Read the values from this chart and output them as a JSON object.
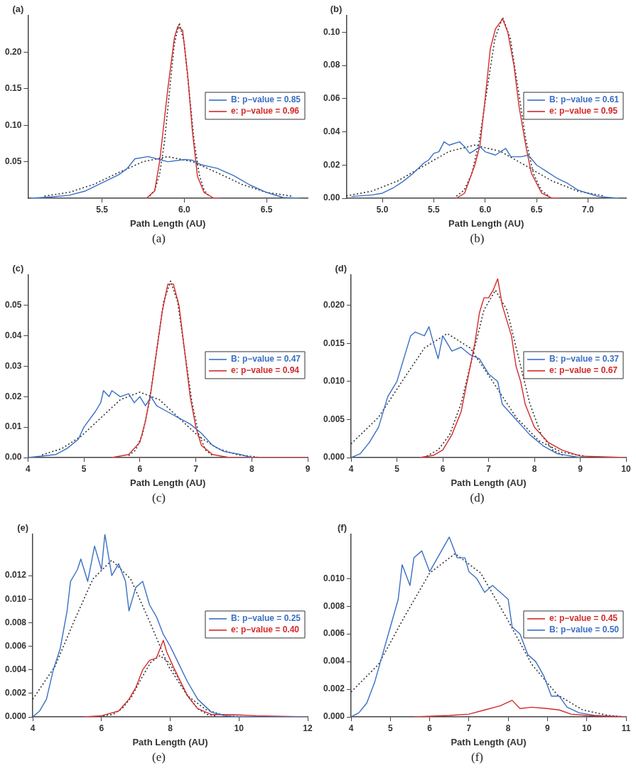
{
  "chart_data": [
    {
      "type": "line",
      "title": "(a)",
      "xlabel": "Path Length (AU)",
      "annotations": [
        "(a)"
      ],
      "xlim": [
        5.05,
        6.75
      ],
      "xticks": [
        5.5,
        {
          "value": 6,
          "label": "6.0"
        },
        6.5
      ],
      "ylim": [
        0,
        0.25
      ],
      "yticks": [
        0.05,
        {
          "value": 0.1,
          "label": "0.10"
        },
        0.15,
        {
          "value": 0.2,
          "label": "0.20"
        }
      ],
      "legend": "right",
      "marker": "none",
      "series": [
        {
          "name": "B: p−value = 0.85",
          "color": "#3a6fc4",
          "x": [
            5.07,
            5.2,
            5.3,
            5.4,
            5.5,
            5.6,
            5.65,
            5.7,
            5.78,
            5.85,
            5.9,
            6.0,
            6.05,
            6.1,
            6.2,
            6.3,
            6.4,
            6.5,
            6.6,
            6.7
          ],
          "values": [
            0,
            0.002,
            0.004,
            0.01,
            0.021,
            0.032,
            0.04,
            0.054,
            0.057,
            0.053,
            0.05,
            0.053,
            0.052,
            0.046,
            0.041,
            0.031,
            0.018,
            0.008,
            0.001,
            0
          ]
        },
        {
          "name": "e: p−value = 0.96",
          "color": "#d42a2a",
          "x": [
            5.77,
            5.82,
            5.85,
            5.9,
            5.94,
            5.96,
            5.99,
            6.02,
            6.05,
            6.08,
            6.12,
            6.18,
            6.22
          ],
          "values": [
            0,
            0.01,
            0.05,
            0.15,
            0.22,
            0.235,
            0.23,
            0.17,
            0.09,
            0.03,
            0.008,
            0,
            0
          ]
        },
        {
          "color": "#333333",
          "line_style": "dotted",
          "x": [
            5.15,
            5.3,
            5.45,
            5.6,
            5.75,
            5.9,
            6.05,
            6.2,
            6.35,
            6.5,
            6.65
          ],
          "values": [
            0.003,
            0.008,
            0.019,
            0.035,
            0.05,
            0.057,
            0.05,
            0.035,
            0.019,
            0.008,
            0.003
          ]
        },
        {
          "color": "#333333",
          "line_style": "dotted",
          "x": [
            5.79,
            5.82,
            5.85,
            5.88,
            5.91,
            5.94,
            5.97,
            6.0,
            6.03,
            6.06,
            6.09,
            6.12,
            6.15
          ],
          "values": [
            0.003,
            0.011,
            0.033,
            0.078,
            0.146,
            0.212,
            0.24,
            0.212,
            0.146,
            0.078,
            0.033,
            0.011,
            0.003
          ]
        }
      ]
    },
    {
      "type": "line",
      "title": "(b)",
      "xlabel": "Path Length (AU)",
      "annotations": [
        "(b)"
      ],
      "xlim": [
        4.65,
        7.37
      ],
      "xticks": [
        {
          "value": 5,
          "label": "5.0"
        },
        5.5,
        {
          "value": 6,
          "label": "6.0"
        },
        6.5,
        {
          "value": 7,
          "label": "7.0"
        }
      ],
      "ylim": [
        0,
        0.11
      ],
      "yticks": [
        {
          "value": 0,
          "label": "0.00"
        },
        0.02,
        0.04,
        0.06,
        0.08,
        {
          "value": 0.1,
          "label": "0.10"
        }
      ],
      "legend": "right",
      "marker": "none",
      "series": [
        {
          "name": "B: p−value = 0.61",
          "color": "#3a6fc4",
          "x": [
            4.7,
            4.9,
            5.0,
            5.1,
            5.2,
            5.3,
            5.4,
            5.45,
            5.5,
            5.55,
            5.6,
            5.65,
            5.75,
            5.8,
            5.85,
            5.95,
            6.0,
            6.1,
            6.2,
            6.25,
            6.35,
            6.42,
            6.5,
            6.6,
            6.7,
            6.8,
            6.9,
            7.0,
            7.1,
            7.3
          ],
          "values": [
            0.001,
            0.002,
            0.003,
            0.006,
            0.01,
            0.015,
            0.021,
            0.023,
            0.027,
            0.028,
            0.034,
            0.032,
            0.034,
            0.031,
            0.027,
            0.031,
            0.028,
            0.026,
            0.03,
            0.025,
            0.025,
            0.026,
            0.02,
            0.016,
            0.012,
            0.009,
            0.005,
            0.003,
            0.001,
            0
          ]
        },
        {
          "name": "e: p−value = 0.95",
          "color": "#d42a2a",
          "x": [
            5.72,
            5.8,
            5.9,
            5.95,
            6.0,
            6.05,
            6.1,
            6.17,
            6.22,
            6.28,
            6.33,
            6.4,
            6.45,
            6.55,
            6.65,
            6.72
          ],
          "values": [
            0,
            0.003,
            0.02,
            0.032,
            0.06,
            0.09,
            0.102,
            0.108,
            0.1,
            0.08,
            0.055,
            0.03,
            0.015,
            0.003,
            0,
            0
          ]
        },
        {
          "color": "#333333",
          "line_style": "dotted",
          "x": [
            4.65,
            4.9,
            5.15,
            5.4,
            5.65,
            5.9,
            6.15,
            6.4,
            6.65,
            6.9,
            7.15
          ],
          "values": [
            0.0014,
            0.0043,
            0.0104,
            0.0194,
            0.0282,
            0.032,
            0.0282,
            0.0194,
            0.0104,
            0.0043,
            0.0014
          ]
        },
        {
          "color": "#333333",
          "line_style": "dotted",
          "x": [
            5.72,
            5.795,
            5.87,
            5.945,
            6.02,
            6.095,
            6.17,
            6.245,
            6.32,
            6.395,
            6.47,
            6.545,
            6.62
          ],
          "values": [
            0.0012,
            0.0048,
            0.0147,
            0.0354,
            0.0661,
            0.0962,
            0.109,
            0.0962,
            0.0661,
            0.0354,
            0.0147,
            0.0048,
            0.0012
          ]
        }
      ]
    },
    {
      "type": "line",
      "title": "(c)",
      "xlabel": "Path Length (AU)",
      "annotations": [
        "(c)"
      ],
      "xlim": [
        4,
        9
      ],
      "xticks": [
        4,
        5,
        6,
        7,
        8,
        9
      ],
      "ylim": [
        0,
        0.06
      ],
      "yticks": [
        {
          "value": 0,
          "label": "0.00"
        },
        0.01,
        0.02,
        0.03,
        0.04,
        0.05
      ],
      "legend": "right",
      "marker": "none",
      "series": [
        {
          "name": "B: p−value = 0.47",
          "color": "#3a6fc4",
          "x": [
            4.0,
            4.5,
            4.7,
            4.9,
            5.0,
            5.2,
            5.3,
            5.35,
            5.45,
            5.5,
            5.65,
            5.8,
            5.9,
            6.0,
            6.1,
            6.2,
            6.3,
            6.5,
            6.7,
            6.9,
            7.1,
            7.3,
            7.5,
            7.8,
            8.0
          ],
          "values": [
            0,
            0.001,
            0.003,
            0.006,
            0.01,
            0.015,
            0.018,
            0.022,
            0.02,
            0.022,
            0.02,
            0.021,
            0.018,
            0.02,
            0.017,
            0.02,
            0.017,
            0.015,
            0.013,
            0.011,
            0.008,
            0.004,
            0.002,
            0.001,
            0
          ]
        },
        {
          "name": "e: p−value = 0.94",
          "color": "#d42a2a",
          "x": [
            5.5,
            5.8,
            6.0,
            6.1,
            6.2,
            6.3,
            6.4,
            6.5,
            6.6,
            6.7,
            6.8,
            6.9,
            7.0,
            7.1,
            7.3,
            7.6,
            9.0
          ],
          "values": [
            0,
            0.001,
            0.005,
            0.012,
            0.022,
            0.035,
            0.048,
            0.057,
            0.057,
            0.05,
            0.035,
            0.02,
            0.01,
            0.004,
            0.001,
            0,
            0
          ]
        },
        {
          "color": "#333333",
          "line_style": "dotted",
          "x": [
            4.25,
            4.6,
            4.95,
            5.3,
            5.65,
            6.0,
            6.35,
            6.7,
            7.05,
            7.4,
            7.75,
            8.1
          ],
          "values": [
            0.0009,
            0.0029,
            0.007,
            0.013,
            0.019,
            0.0215,
            0.019,
            0.013,
            0.007,
            0.0029,
            0.0009,
            0.0002
          ]
        },
        {
          "color": "#333333",
          "line_style": "dotted",
          "x": [
            5.8,
            5.925,
            6.05,
            6.175,
            6.3,
            6.425,
            6.55,
            6.675,
            6.8,
            6.925,
            7.05,
            7.175,
            7.3
          ],
          "values": [
            0.0006,
            0.0025,
            0.0078,
            0.0188,
            0.0352,
            0.0512,
            0.058,
            0.0512,
            0.0352,
            0.0188,
            0.0078,
            0.0025,
            0.0006
          ]
        }
      ]
    },
    {
      "type": "line",
      "title": "(d)",
      "xlabel": "Path Length (AU)",
      "annotations": [
        "(d)"
      ],
      "xlim": [
        4,
        10
      ],
      "xticks": [
        4,
        5,
        6,
        7,
        8,
        9,
        10
      ],
      "ylim": [
        0,
        0.024
      ],
      "yticks": [
        {
          "value": 0,
          "label": "0.000"
        },
        0.005,
        {
          "value": 0.01,
          "label": "0.010"
        },
        0.015,
        {
          "value": 0.02,
          "label": "0.020"
        }
      ],
      "legend": "right",
      "marker": "none",
      "series": [
        {
          "name": "B: p−value = 0.37",
          "color": "#3a6fc4",
          "x": [
            4.0,
            4.2,
            4.4,
            4.6,
            4.8,
            5.0,
            5.2,
            5.3,
            5.4,
            5.6,
            5.7,
            5.8,
            5.9,
            6.0,
            6.2,
            6.4,
            6.6,
            6.8,
            7.0,
            7.2,
            7.3,
            7.6,
            7.9,
            8.2,
            8.5,
            9.0
          ],
          "values": [
            0,
            0.0005,
            0.002,
            0.004,
            0.008,
            0.01,
            0.014,
            0.016,
            0.0165,
            0.016,
            0.0172,
            0.015,
            0.013,
            0.016,
            0.014,
            0.0145,
            0.0135,
            0.013,
            0.011,
            0.01,
            0.007,
            0.005,
            0.003,
            0.0015,
            0.0005,
            0
          ]
        },
        {
          "name": "e: p−value = 0.67",
          "color": "#d42a2a",
          "x": [
            5.5,
            5.8,
            6.0,
            6.2,
            6.4,
            6.5,
            6.6,
            6.7,
            6.8,
            6.9,
            7.0,
            7.1,
            7.2,
            7.3,
            7.5,
            7.6,
            7.7,
            7.8,
            8.0,
            8.3,
            8.6,
            9.0,
            10.0
          ],
          "values": [
            0,
            0.0003,
            0.001,
            0.003,
            0.006,
            0.009,
            0.012,
            0.015,
            0.019,
            0.021,
            0.021,
            0.022,
            0.0235,
            0.02,
            0.016,
            0.012,
            0.01,
            0.007,
            0.004,
            0.002,
            0.001,
            0.0002,
            0
          ]
        },
        {
          "color": "#333333",
          "line_style": "dotted",
          "x": [
            4.0,
            4.6,
            5.1,
            5.6,
            6.1,
            6.6,
            7.1,
            7.6,
            8.1,
            8.6,
            9.1
          ],
          "values": [
            0.0018,
            0.0053,
            0.0099,
            0.0144,
            0.0163,
            0.0144,
            0.0099,
            0.0053,
            0.0022,
            0.0007,
            0.0002
          ]
        },
        {
          "color": "#333333",
          "line_style": "dotted",
          "x": [
            5.65,
            5.9,
            6.15,
            6.4,
            6.65,
            6.9,
            7.15,
            7.4,
            7.65,
            7.9,
            8.15,
            8.4,
            8.65
          ],
          "values": [
            0.0002,
            0.001,
            0.003,
            0.0071,
            0.0133,
            0.0194,
            0.022,
            0.0194,
            0.0133,
            0.0071,
            0.003,
            0.001,
            0.0002
          ]
        }
      ]
    },
    {
      "type": "line",
      "title": "(e)",
      "xlabel": "Path Length (AU)",
      "annotations": [
        "(e)"
      ],
      "xlim": [
        4,
        12
      ],
      "xticks": [
        4,
        6,
        8,
        10,
        12
      ],
      "ylim": [
        0,
        0.0155
      ],
      "yticks": [
        {
          "value": 0,
          "label": "0.000"
        },
        0.002,
        0.004,
        0.006,
        0.008,
        {
          "value": 0.01,
          "label": "0.010"
        },
        0.012
      ],
      "legend": "right",
      "marker": "none",
      "series": [
        {
          "name": "B: p−value = 0.25",
          "color": "#3a6fc4",
          "x": [
            4.0,
            4.2,
            4.4,
            4.6,
            4.8,
            5.0,
            5.1,
            5.3,
            5.4,
            5.6,
            5.8,
            6.0,
            6.1,
            6.3,
            6.5,
            6.7,
            6.8,
            7.0,
            7.2,
            7.4,
            7.6,
            7.8,
            8.0,
            8.2,
            8.5,
            8.8,
            9.2,
            9.6,
            10.0,
            12.0
          ],
          "values": [
            0,
            0.0005,
            0.0015,
            0.004,
            0.0058,
            0.009,
            0.0115,
            0.0125,
            0.0134,
            0.0115,
            0.0145,
            0.0125,
            0.0155,
            0.012,
            0.013,
            0.0115,
            0.009,
            0.011,
            0.0115,
            0.0095,
            0.0085,
            0.007,
            0.006,
            0.0048,
            0.003,
            0.0015,
            0.0004,
            0.0001,
            0,
            0
          ]
        },
        {
          "name": "e: p−value = 0.40",
          "color": "#d42a2a",
          "x": [
            5.5,
            6.0,
            6.5,
            6.8,
            7.0,
            7.2,
            7.4,
            7.6,
            7.8,
            7.9,
            8.1,
            8.3,
            8.5,
            8.8,
            9.2,
            9.8,
            10.5,
            12.0
          ],
          "values": [
            0,
            0.0001,
            0.0005,
            0.0015,
            0.0025,
            0.004,
            0.0048,
            0.005,
            0.0065,
            0.0055,
            0.0042,
            0.003,
            0.0018,
            0.0007,
            0.0002,
            0.0002,
            0.0001,
            0
          ]
        },
        {
          "color": "#333333",
          "line_style": "dotted",
          "x": [
            4.0,
            4.65,
            5.2,
            5.75,
            6.3,
            6.85,
            7.4,
            7.95,
            8.5,
            9.05,
            9.6,
            10.2
          ],
          "values": [
            0.0015,
            0.0043,
            0.0081,
            0.0117,
            0.0133,
            0.0117,
            0.0081,
            0.0043,
            0.0018,
            0.0006,
            0.0001,
            0
          ]
        },
        {
          "color": "#333333",
          "line_style": "dotted",
          "x": [
            6.05,
            6.325,
            6.6,
            6.875,
            7.15,
            7.425,
            7.7,
            7.975,
            8.25,
            8.525,
            8.8,
            9.075,
            9.35
          ],
          "values": [
            0.0001,
            0.0002,
            0.0007,
            0.0017,
            0.0032,
            0.0046,
            0.0052,
            0.0046,
            0.0032,
            0.0017,
            0.0007,
            0.0002,
            0.0001
          ]
        }
      ]
    },
    {
      "type": "line",
      "title": "(f)",
      "xlabel": "Path Length (AU)",
      "annotations": [
        "(f)"
      ],
      "xlim": [
        4,
        11
      ],
      "xticks": [
        4,
        5,
        6,
        7,
        8,
        9,
        10,
        11
      ],
      "ylim": [
        0,
        0.0132
      ],
      "yticks": [
        {
          "value": 0,
          "label": "0.000"
        },
        0.002,
        0.004,
        0.006,
        0.008,
        {
          "value": 0.01,
          "label": "0.010"
        }
      ],
      "legend": "right",
      "marker": "none",
      "series": [
        {
          "name": "e: p−value = 0.45",
          "color": "#d42a2a",
          "x": [
            5.6,
            6.5,
            7.0,
            7.4,
            7.8,
            8.1,
            8.3,
            8.6,
            9.0,
            9.3,
            9.6,
            10.0,
            11.0
          ],
          "values": [
            0,
            0.0001,
            0.0002,
            0.0005,
            0.0008,
            0.0012,
            0.0006,
            0.0007,
            0.0006,
            0.0005,
            0.0002,
            0.0001,
            0
          ]
        },
        {
          "name": "B: p−value = 0.50",
          "color": "#3a6fc4",
          "x": [
            4.0,
            4.2,
            4.4,
            4.6,
            4.8,
            5.0,
            5.2,
            5.3,
            5.5,
            5.6,
            5.8,
            6.0,
            6.2,
            6.4,
            6.5,
            6.7,
            6.9,
            7.0,
            7.2,
            7.4,
            7.6,
            7.8,
            8.0,
            8.1,
            8.3,
            8.5,
            8.7,
            8.9,
            9.1,
            9.3,
            9.5,
            9.8,
            10.2,
            11.0
          ],
          "values": [
            0,
            0.0003,
            0.001,
            0.0025,
            0.0045,
            0.0065,
            0.0085,
            0.011,
            0.0095,
            0.0115,
            0.012,
            0.0105,
            0.0115,
            0.0125,
            0.013,
            0.0115,
            0.0115,
            0.0105,
            0.01,
            0.009,
            0.0095,
            0.009,
            0.0085,
            0.0065,
            0.006,
            0.0045,
            0.004,
            0.003,
            0.0015,
            0.0015,
            0.0007,
            0.0003,
            0.0001,
            0
          ]
        },
        {
          "color": "#333333",
          "line_style": "dotted",
          "x": [
            4.0,
            4.7,
            5.35,
            6.0,
            6.65,
            7.3,
            7.95,
            8.6,
            9.25,
            9.9,
            10.55,
            11.0
          ],
          "values": [
            0.0018,
            0.0038,
            0.0072,
            0.0104,
            0.0118,
            0.0104,
            0.0072,
            0.0038,
            0.0016,
            0.0005,
            0.0001,
            0
          ]
        }
      ]
    }
  ]
}
